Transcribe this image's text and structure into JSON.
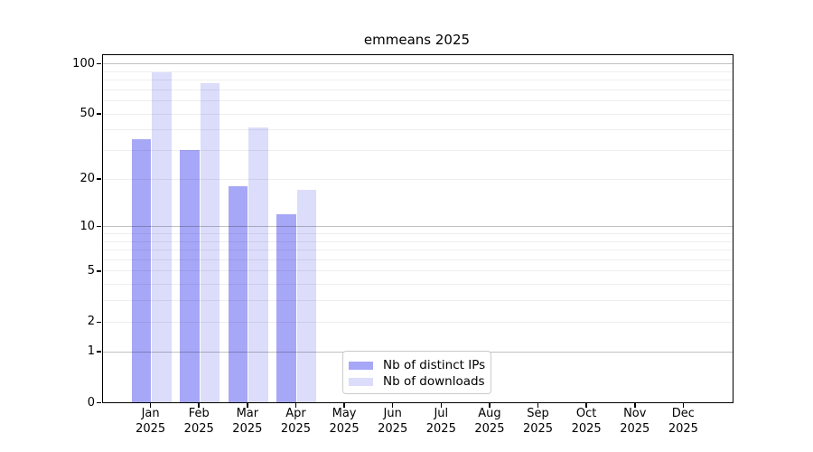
{
  "chart_data": {
    "type": "bar",
    "title": "emmeans 2025",
    "xlabel": "",
    "ylabel": "",
    "y_scale": "log1p",
    "ylim": [
      0,
      111
    ],
    "months": [
      "Jan",
      "Feb",
      "Mar",
      "Apr",
      "May",
      "Jun",
      "Jul",
      "Aug",
      "Sep",
      "Oct",
      "Nov",
      "Dec"
    ],
    "year": "2025",
    "series": [
      {
        "name": "Nb of distinct IPs",
        "color": "#a7a7f7",
        "values": [
          35,
          30,
          18,
          12,
          null,
          null,
          null,
          null,
          null,
          null,
          null,
          null
        ]
      },
      {
        "name": "Nb of downloads",
        "color": "#dcdcfb",
        "values": [
          89,
          76,
          41,
          17,
          null,
          null,
          null,
          null,
          null,
          null,
          null,
          null
        ]
      }
    ],
    "yticks": [
      {
        "v": 100,
        "label": "100"
      },
      {
        "v": 50,
        "label": "50"
      },
      {
        "v": 20,
        "label": "20"
      },
      {
        "v": 10,
        "label": "10"
      },
      {
        "v": 5,
        "label": "5"
      },
      {
        "v": 2,
        "label": "2"
      },
      {
        "v": 1,
        "label": "1"
      },
      {
        "v": 0,
        "label": "0"
      }
    ],
    "grid_minor": [
      2,
      3,
      4,
      5,
      6,
      7,
      8,
      9,
      20,
      30,
      40,
      50,
      60,
      70,
      80,
      90
    ],
    "grid_major": [
      1,
      10,
      100
    ],
    "legend_position": "inside-bottom-center",
    "grid_on": true
  },
  "legend": {
    "items": [
      {
        "label": "Nb of distinct IPs",
        "color": "#a7a7f7"
      },
      {
        "label": "Nb of downloads",
        "color": "#dcdcfb"
      }
    ]
  }
}
